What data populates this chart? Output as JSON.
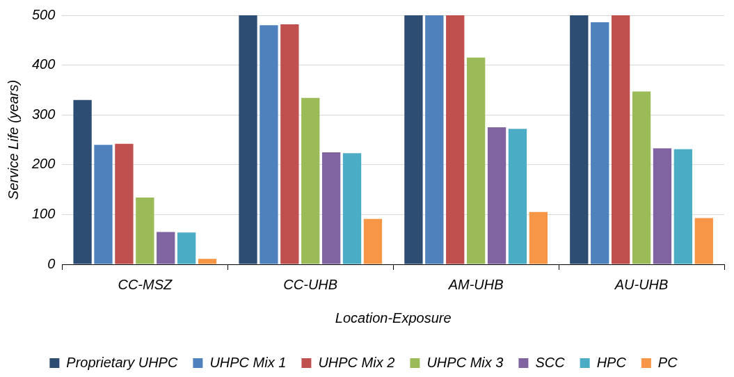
{
  "chart_data": {
    "type": "bar",
    "xlabel": "Location-Exposure",
    "ylabel": "Service Life (years)",
    "categories": [
      "CC-MSZ",
      "CC-UHB",
      "AM-UHB",
      "AU-UHB"
    ],
    "series": [
      {
        "name": "Proprietary UHPC",
        "color": "#2e4d73",
        "values": [
          330,
          500,
          500,
          500
        ]
      },
      {
        "name": "UHPC Mix 1",
        "color": "#4f81bd",
        "values": [
          240,
          480,
          500,
          486
        ]
      },
      {
        "name": "UHPC Mix 2",
        "color": "#c0504d",
        "values": [
          242,
          482,
          500,
          500
        ]
      },
      {
        "name": "UHPC Mix 3",
        "color": "#9bbb59",
        "values": [
          134,
          334,
          415,
          347
        ]
      },
      {
        "name": "SCC",
        "color": "#8064a2",
        "values": [
          65,
          225,
          275,
          233
        ]
      },
      {
        "name": "HPC",
        "color": "#4bacc6",
        "values": [
          64,
          223,
          272,
          231
        ]
      },
      {
        "name": "PC",
        "color": "#f79646",
        "values": [
          11,
          91,
          105,
          93
        ]
      }
    ],
    "ylim": [
      0,
      500
    ],
    "yticks": [
      0,
      100,
      200,
      300,
      400,
      500
    ],
    "grid": "y",
    "legend": "bottom"
  }
}
